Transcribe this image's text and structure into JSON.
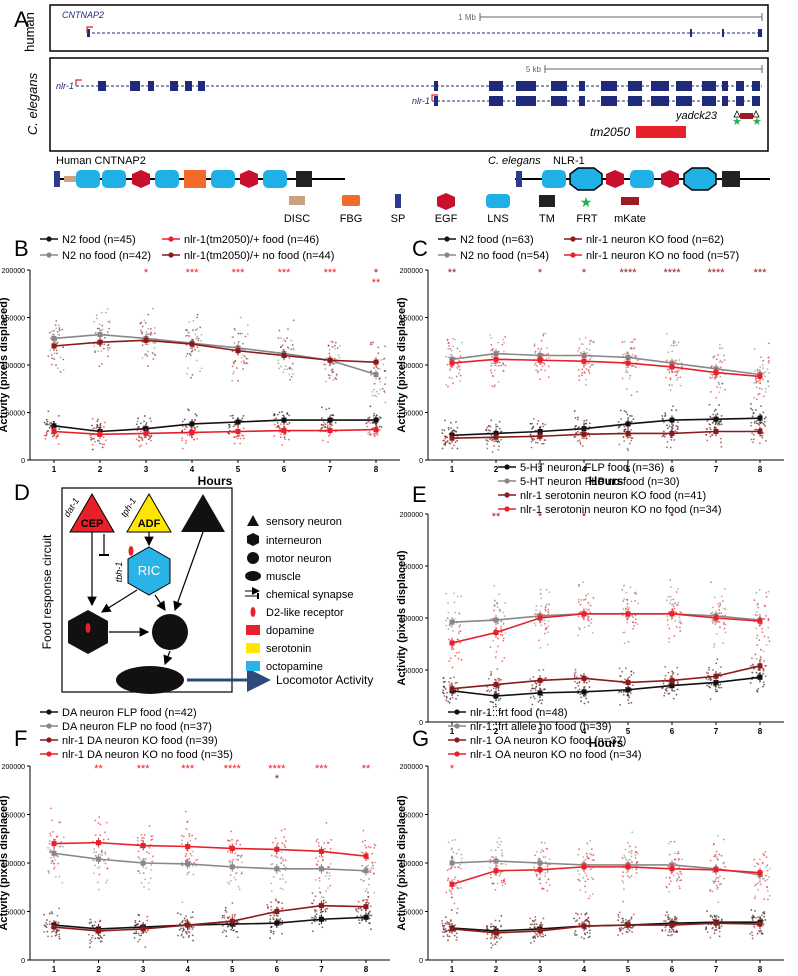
{
  "panel_letters": [
    "A",
    "B",
    "C",
    "D",
    "E",
    "F",
    "G"
  ],
  "genome": {
    "human_species": "human",
    "worm_species": "C. elegans",
    "human_gene": "CNTNAP2",
    "human_scale": "1 Mb",
    "worm_gene": "nlr-1",
    "worm_scale": "5 kb",
    "allele_frt": "yadck23",
    "allele_del": "tm2050"
  },
  "domains": {
    "human_label": "Human CNTNAP2",
    "worm_species": "C. elegans",
    "worm_protein": "NLR-1",
    "legend": [
      "DISC",
      "FBG",
      "SP",
      "EGF",
      "LNS",
      "TM",
      "FRT",
      "mKate"
    ]
  },
  "colors": {
    "disc": "#c9a27e",
    "fbg": "#f26b2a",
    "sp": "#2b3a8f",
    "egf": "#c8102e",
    "lns": "#1fb1e6",
    "tm": "#222222",
    "frt": "#22b24c",
    "mkate": "#9e1b24",
    "gene": "#1f2a7a",
    "red": "#e8202a",
    "darkred": "#8b1a1a",
    "black": "#111111",
    "gray": "#888888",
    "ser": "#ffe600",
    "oct": "#29b3e6"
  },
  "circuit": {
    "title": "Food response circuit",
    "neuron_cep": "CEP",
    "neuron_adf": "ADF",
    "neuron_ric": "RIC",
    "gene_dat1": "dat-1",
    "gene_tph1": "tph-1",
    "gene_tbh1": "tbh-1",
    "output": "Locomotor Activity",
    "legend": [
      "sensory neuron",
      "interneuron",
      "motor neuron",
      "muscle",
      "chemical synapse",
      "D2-like receptor",
      "dopamine",
      "serotonin",
      "octopamine"
    ]
  },
  "chart_data": [
    {
      "panel": "B",
      "type": "line",
      "xlabel": "Hours",
      "ylabel": "Activity (pixels displaced)",
      "x": [
        1,
        2,
        3,
        4,
        5,
        6,
        7,
        8
      ],
      "ylim": [
        0,
        200000
      ],
      "yticks": [
        "0",
        "50000",
        "100000",
        "150000",
        "200000"
      ],
      "series": [
        {
          "name": "N2 food (n=45)",
          "color": "#111111",
          "values": [
            36000,
            30000,
            33000,
            38000,
            40000,
            42000,
            42000,
            42000
          ]
        },
        {
          "name": "N2 no food (n=42)",
          "color": "#888888",
          "values": [
            128000,
            132000,
            128000,
            123000,
            118000,
            112000,
            105000,
            90000
          ]
        },
        {
          "name": "nlr-1(tm2050)/+ food (n=46)",
          "color": "#e8202a",
          "values": [
            30000,
            27000,
            28000,
            29000,
            30000,
            31000,
            31000,
            32000
          ]
        },
        {
          "name": "nlr-1(tm2050)/+ no food (n=44)",
          "color": "#8b1a1a",
          "values": [
            120000,
            124000,
            126000,
            122000,
            115000,
            110000,
            105000,
            103000
          ]
        }
      ],
      "significance": [
        {
          "x": 3,
          "text": "*",
          "color": "#e8202a"
        },
        {
          "x": 4,
          "text": "***",
          "color": "#e8202a"
        },
        {
          "x": 5,
          "text": "***",
          "color": "#e8202a"
        },
        {
          "x": 6,
          "text": "***",
          "color": "#e8202a"
        },
        {
          "x": 7,
          "text": "***",
          "color": "#e8202a"
        },
        {
          "x": 8,
          "text": "*",
          "color": "#8b1a1a"
        },
        {
          "x": 8,
          "text": "**",
          "color": "#e8202a"
        }
      ]
    },
    {
      "panel": "C",
      "type": "line",
      "xlabel": "Hours",
      "ylabel": "Activity (pixels displaced)",
      "x": [
        1,
        2,
        3,
        4,
        5,
        6,
        7,
        8
      ],
      "ylim": [
        0,
        200000
      ],
      "yticks": [
        "0",
        "50000",
        "100000",
        "150000",
        "200000"
      ],
      "series": [
        {
          "name": "N2 food (n=63)",
          "color": "#111111",
          "values": [
            26000,
            28000,
            30000,
            33000,
            38000,
            42000,
            43000,
            44000
          ]
        },
        {
          "name": "N2 no food (n=54)",
          "color": "#888888",
          "values": [
            106000,
            112000,
            110000,
            110000,
            108000,
            102000,
            96000,
            90000
          ]
        },
        {
          "name": "nlr-1 neuron KO food (n=62)",
          "color": "#8b1a1a",
          "values": [
            23000,
            24000,
            25000,
            27000,
            28000,
            28000,
            30000,
            30000
          ]
        },
        {
          "name": "nlr-1 neuron KO no food (n=57)",
          "color": "#e8202a",
          "values": [
            102000,
            106000,
            105000,
            104000,
            102000,
            98000,
            92000,
            88000
          ]
        }
      ],
      "significance": [
        {
          "x": 1,
          "text": "**",
          "color": "#8b1a1a"
        },
        {
          "x": 3,
          "text": "*",
          "color": "#8b1a1a"
        },
        {
          "x": 4,
          "text": "*",
          "color": "#8b1a1a"
        },
        {
          "x": 5,
          "text": "****",
          "color": "#8b1a1a"
        },
        {
          "x": 6,
          "text": "****",
          "color": "#8b1a1a"
        },
        {
          "x": 7,
          "text": "****",
          "color": "#8b1a1a"
        },
        {
          "x": 8,
          "text": "***",
          "color": "#8b1a1a"
        }
      ]
    },
    {
      "panel": "E",
      "type": "line",
      "xlabel": "Hours",
      "ylabel": "Activity (pixels displaced)",
      "x": [
        1,
        2,
        3,
        4,
        5,
        6,
        7,
        8
      ],
      "ylim": [
        0,
        200000
      ],
      "yticks": [
        "0",
        "50000",
        "100000",
        "150000",
        "200000"
      ],
      "series": [
        {
          "name": "5-HT neuron FLP food (n=36)",
          "color": "#111111",
          "values": [
            30000,
            25000,
            28000,
            29000,
            31000,
            35000,
            38000,
            43000
          ]
        },
        {
          "name": "5-HT neuron FLP no food (n=30)",
          "color": "#888888",
          "values": [
            96000,
            98000,
            102000,
            104000,
            104000,
            104000,
            102000,
            98000
          ]
        },
        {
          "name": "nlr-1 serotonin neuron KO food (n=41)",
          "color": "#8b1a1a",
          "values": [
            32000,
            36000,
            40000,
            42000,
            38000,
            40000,
            44000,
            54000
          ]
        },
        {
          "name": "nlr-1 serotonin neuron KO no food (n=34)",
          "color": "#e8202a",
          "values": [
            76000,
            86000,
            100000,
            104000,
            104000,
            104000,
            100000,
            97000
          ]
        }
      ],
      "significance": [
        {
          "x": 2,
          "text": "**",
          "color": "#8b1a1a"
        },
        {
          "x": 3,
          "text": "*",
          "color": "#8b1a1a"
        },
        {
          "x": 4,
          "text": "*",
          "color": "#8b1a1a"
        },
        {
          "x": 6,
          "text": "*",
          "color": "#8b1a1a"
        }
      ]
    },
    {
      "panel": "F",
      "type": "line",
      "xlabel": "Hours",
      "ylabel": "Activity (pixels displaced)",
      "x": [
        1,
        2,
        3,
        4,
        5,
        6,
        7,
        8
      ],
      "ylim": [
        0,
        200000
      ],
      "yticks": [
        "0",
        "50000",
        "100000",
        "150000",
        "200000"
      ],
      "series": [
        {
          "name": "DA neuron FLP food (n=42)",
          "color": "#111111",
          "values": [
            36000,
            32000,
            34000,
            36000,
            37000,
            38000,
            42000,
            44000
          ]
        },
        {
          "name": "DA neuron FLP no food (n=37)",
          "color": "#888888",
          "values": [
            110000,
            104000,
            100000,
            99000,
            96000,
            94000,
            94000,
            92000
          ]
        },
        {
          "name": "nlr-1 DA neuron KO food (n=39)",
          "color": "#8b1a1a",
          "values": [
            34000,
            30000,
            32000,
            36000,
            40000,
            50000,
            56000,
            55000
          ]
        },
        {
          "name": "nlr-1 DA neuron KO no food (n=35)",
          "color": "#e8202a",
          "values": [
            120000,
            121000,
            118000,
            117000,
            115000,
            114000,
            112000,
            107000
          ]
        }
      ],
      "significance": [
        {
          "x": 2,
          "text": "**",
          "color": "#e8202a"
        },
        {
          "x": 3,
          "text": "***",
          "color": "#e8202a"
        },
        {
          "x": 4,
          "text": "***",
          "color": "#e8202a"
        },
        {
          "x": 5,
          "text": "****",
          "color": "#e8202a"
        },
        {
          "x": 6,
          "text": "****",
          "color": "#e8202a"
        },
        {
          "x": 6,
          "text": "*",
          "color": "#8b1a1a"
        },
        {
          "x": 7,
          "text": "***",
          "color": "#e8202a"
        },
        {
          "x": 8,
          "text": "**",
          "color": "#e8202a"
        }
      ]
    },
    {
      "panel": "G",
      "type": "line",
      "xlabel": "Hours",
      "ylabel": "Activity (pixels displaced)",
      "x": [
        1,
        2,
        3,
        4,
        5,
        6,
        7,
        8
      ],
      "ylim": [
        0,
        200000
      ],
      "yticks": [
        "0",
        "50000",
        "100000",
        "150000",
        "200000"
      ],
      "series": [
        {
          "name": "nlr-1::frt food (n=48)",
          "color": "#111111",
          "values": [
            33000,
            30000,
            32000,
            35000,
            36000,
            38000,
            39000,
            39000
          ]
        },
        {
          "name": "nlr-1::frt allele no food (n=39)",
          "color": "#888888",
          "values": [
            100000,
            102000,
            100000,
            98000,
            98000,
            98000,
            94000,
            88000
          ]
        },
        {
          "name": "nlr-1 OA neuron KO food (n=37)",
          "color": "#8b1a1a",
          "values": [
            32000,
            28000,
            30000,
            35000,
            36000,
            36000,
            38000,
            37000
          ]
        },
        {
          "name": "nlr-1 OA neuron KO no food (n=34)",
          "color": "#e8202a",
          "values": [
            78000,
            92000,
            93000,
            96000,
            96000,
            94000,
            93000,
            90000
          ]
        }
      ],
      "significance": [
        {
          "x": 1,
          "text": "*",
          "color": "#e8202a"
        }
      ]
    }
  ]
}
